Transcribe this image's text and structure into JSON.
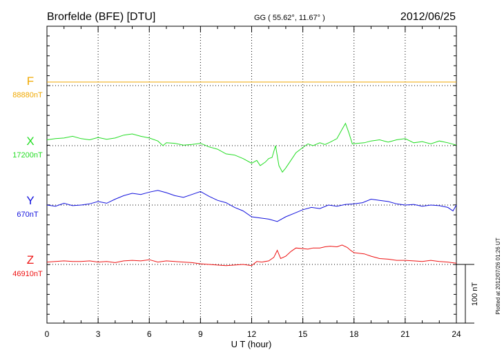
{
  "header": {
    "station": "Brorfelde (BFE)  [DTU]",
    "coords": "GG ( 55.62°,  11.67° )",
    "date": "2012/06/25"
  },
  "footer": {
    "plotted": "Plotted at 2012/07/26 01:26 UT"
  },
  "chart_data": {
    "type": "line",
    "title": "Brorfelde (BFE)  [DTU]",
    "xlabel": "U T (hour)",
    "xlim": [
      0,
      24
    ],
    "xticks": [
      "0",
      "3",
      "6",
      "9",
      "12",
      "15",
      "18",
      "21",
      "24"
    ],
    "grid": true,
    "scale_bar_label": "100 nT",
    "scale_bar_nT": 100,
    "y_unit": "nT",
    "channels": [
      {
        "label": "F",
        "baseline": "88880nT",
        "baseline_nT": 88880,
        "color": "#f0a800",
        "x": [
          0,
          24
        ],
        "values": [
          6,
          6
        ]
      },
      {
        "label": "X",
        "baseline": "17200nT",
        "baseline_nT": 17200,
        "color": "#22dd22",
        "x": [
          0,
          0.5,
          1,
          1.5,
          2,
          2.5,
          3,
          3.5,
          4,
          4.5,
          5,
          5.5,
          6,
          6.5,
          6.8,
          7,
          7.5,
          8,
          8.5,
          9,
          9.5,
          10,
          10.5,
          11,
          11.5,
          12,
          12.3,
          12.5,
          12.8,
          13,
          13.2,
          13.4,
          13.6,
          13.8,
          14,
          14.3,
          14.6,
          15,
          15.3,
          15.6,
          16,
          16.3,
          16.6,
          17,
          17.3,
          17.5,
          17.7,
          17.9,
          18.2,
          18.6,
          19,
          19.5,
          20,
          20.5,
          21,
          21.5,
          22,
          22.5,
          23,
          23.5,
          24
        ],
        "values": [
          10,
          12,
          13,
          16,
          12,
          10,
          14,
          11,
          13,
          18,
          20,
          16,
          13,
          8,
          0,
          5,
          4,
          1,
          2,
          4,
          -2,
          -6,
          -14,
          -16,
          -22,
          -30,
          -25,
          -34,
          -28,
          -22,
          -20,
          0,
          -34,
          -45,
          -38,
          -25,
          -12,
          -3,
          3,
          0,
          5,
          2,
          6,
          12,
          28,
          38,
          22,
          3,
          4,
          5,
          8,
          10,
          6,
          10,
          12,
          5,
          7,
          3,
          8,
          5,
          1
        ]
      },
      {
        "label": "Y",
        "baseline": "670nT",
        "baseline_nT": 670,
        "color": "#1010dd",
        "x": [
          0,
          0.5,
          1,
          1.5,
          2,
          2.5,
          3,
          3.5,
          4,
          4.5,
          5,
          5.5,
          6,
          6.5,
          7,
          7.5,
          8,
          8.5,
          9,
          9.5,
          10,
          10.5,
          11,
          11.5,
          12,
          12.5,
          13,
          13.5,
          14,
          14.5,
          15,
          15.5,
          16,
          16.5,
          17,
          17.5,
          18,
          18.5,
          19,
          19.5,
          20,
          20.5,
          21,
          21.5,
          22,
          22.5,
          23,
          23.5,
          23.8,
          24
        ],
        "values": [
          0,
          -2,
          3,
          -1,
          0,
          2,
          6,
          3,
          10,
          16,
          20,
          18,
          22,
          25,
          21,
          16,
          13,
          18,
          23,
          15,
          8,
          4,
          -4,
          -10,
          -20,
          -22,
          -24,
          -28,
          -20,
          -14,
          -8,
          -4,
          -6,
          0,
          -2,
          1,
          2,
          4,
          10,
          8,
          6,
          2,
          0,
          1,
          -2,
          0,
          -1,
          -4,
          -10,
          0
        ]
      },
      {
        "label": "Z",
        "baseline": "46910nT",
        "baseline_nT": 46910,
        "color": "#ee1111",
        "x": [
          0,
          0.5,
          1,
          1.5,
          2,
          2.5,
          3,
          3.5,
          4,
          4.5,
          5,
          5.5,
          6,
          6.5,
          7,
          7.5,
          8,
          8.5,
          9,
          9.5,
          10,
          10.5,
          11,
          11.5,
          12,
          12.3,
          12.6,
          13,
          13.3,
          13.5,
          13.7,
          14,
          14.3,
          14.6,
          15,
          15.3,
          15.6,
          16,
          16.3,
          16.6,
          17,
          17.3,
          17.6,
          17.8,
          18,
          18.3,
          18.6,
          19,
          19.5,
          20,
          20.5,
          21,
          21.5,
          22,
          22.5,
          23,
          23.5,
          24
        ],
        "values": [
          4,
          5,
          6,
          5,
          5,
          6,
          4,
          5,
          3,
          6,
          7,
          6,
          8,
          4,
          6,
          5,
          4,
          3,
          1,
          0,
          -1,
          -2,
          -1,
          0,
          -2,
          5,
          4,
          6,
          12,
          24,
          10,
          14,
          22,
          28,
          27,
          26,
          28,
          28,
          30,
          31,
          30,
          33,
          29,
          24,
          20,
          19,
          18,
          14,
          10,
          9,
          7,
          7,
          6,
          5,
          7,
          5,
          4,
          2
        ]
      }
    ]
  }
}
